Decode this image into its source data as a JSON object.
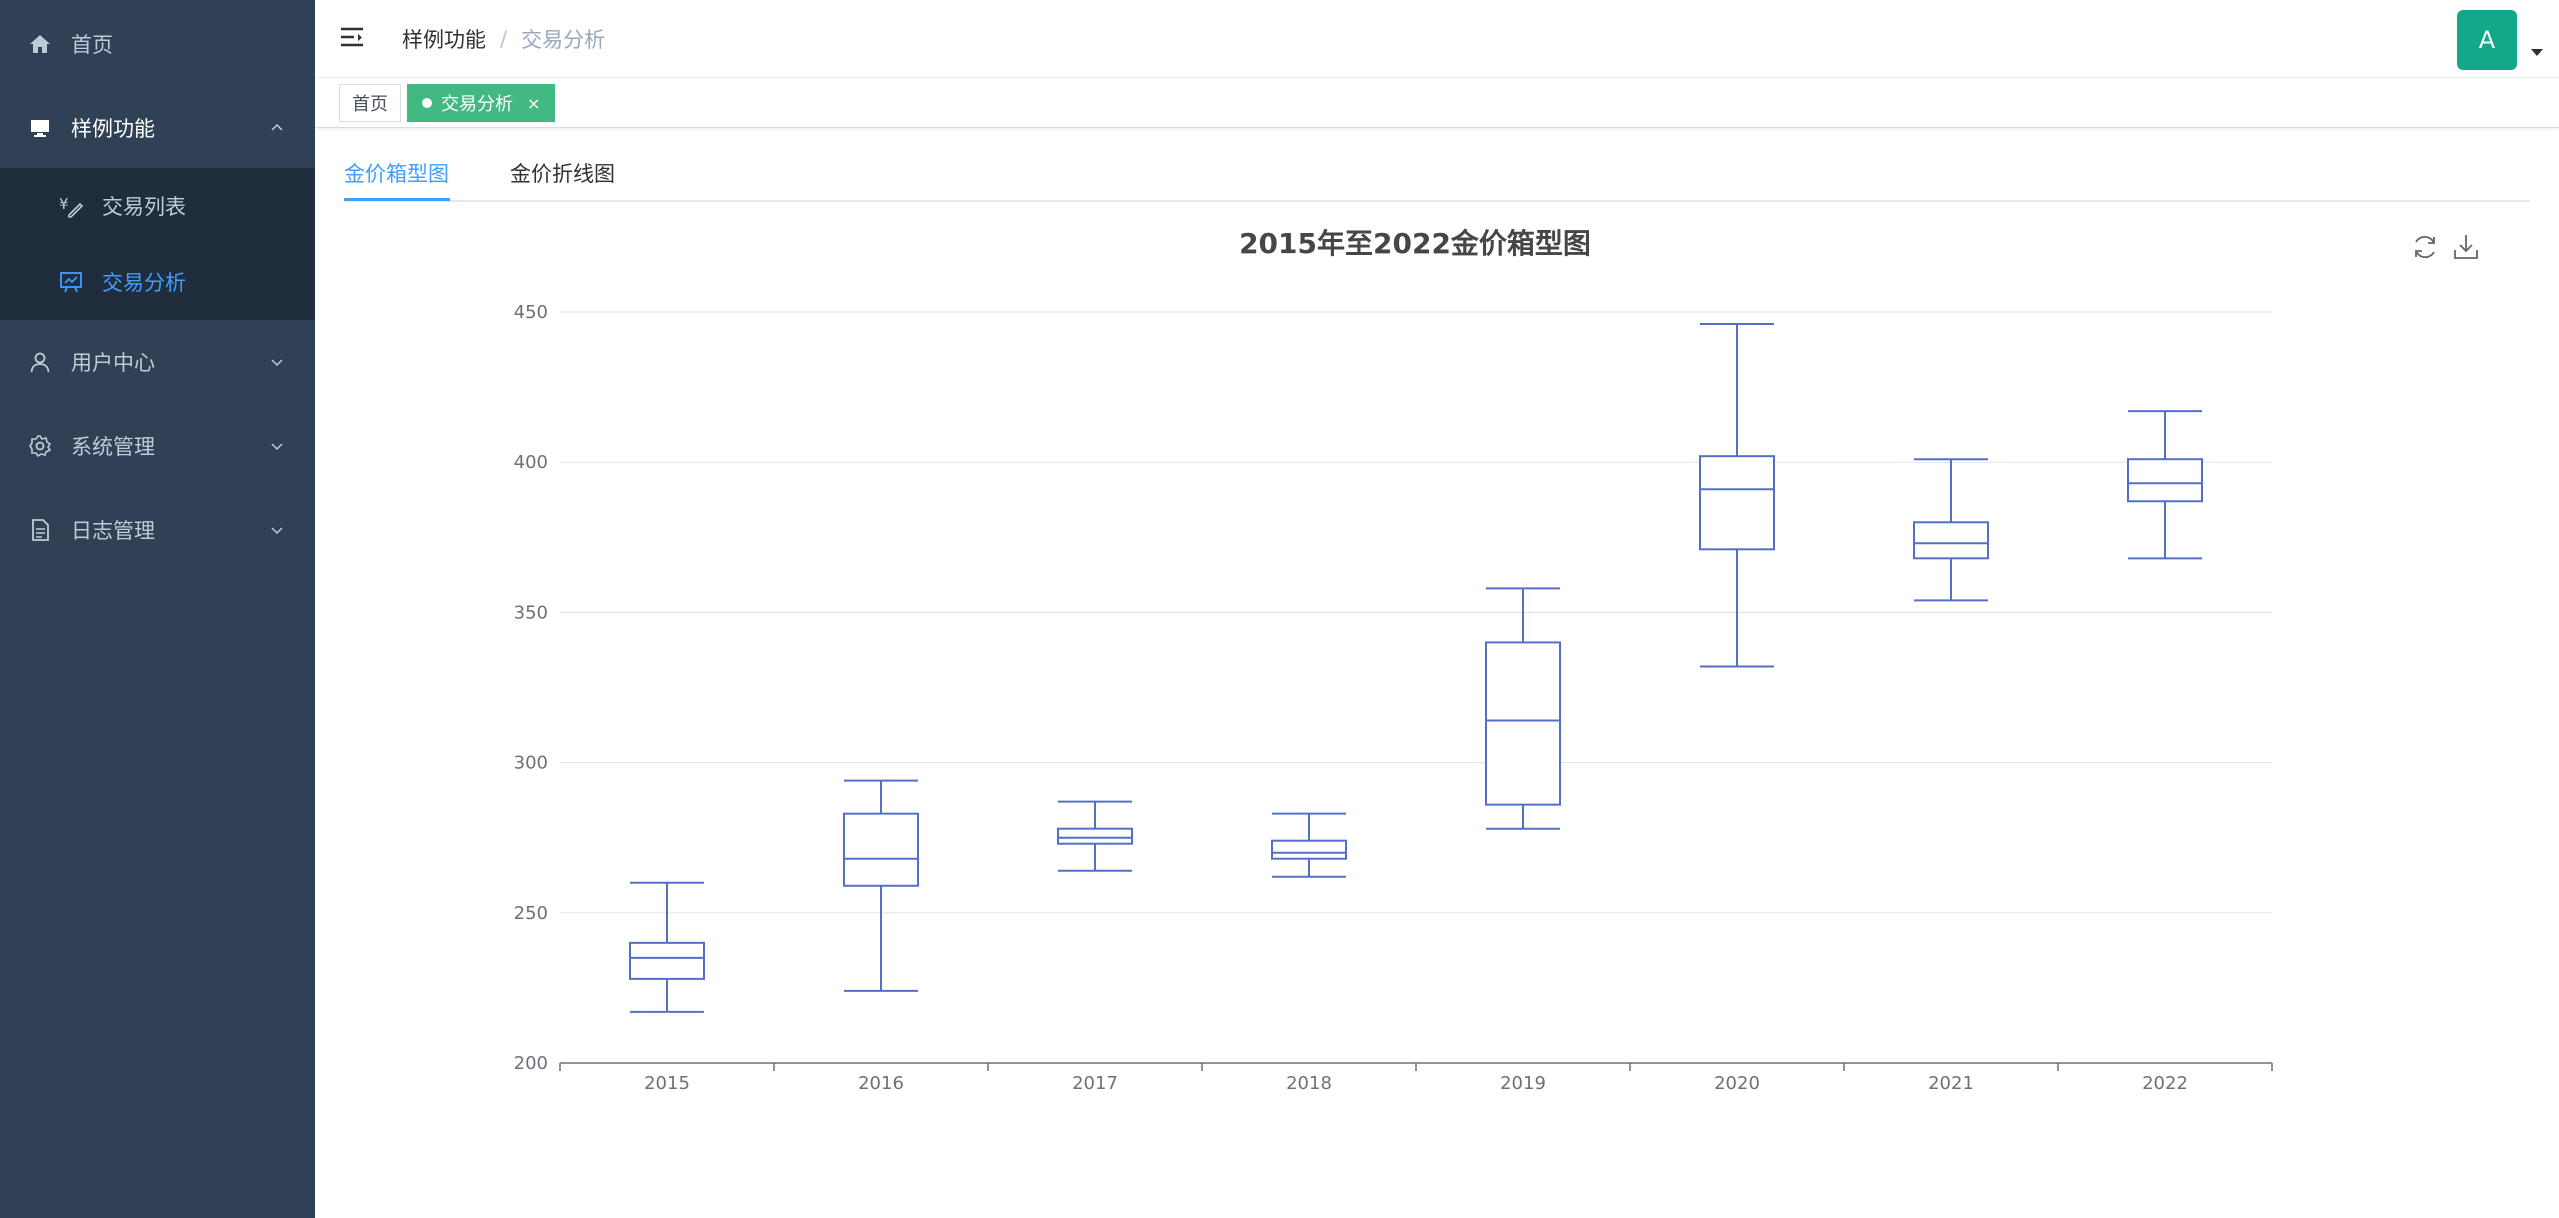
{
  "sidebar": {
    "items": [
      {
        "label": "首页",
        "icon": "home-icon"
      },
      {
        "label": "样例功能",
        "icon": "monitor-icon"
      },
      {
        "label": "用户中心",
        "icon": "user-icon"
      },
      {
        "label": "系统管理",
        "icon": "gear-icon"
      },
      {
        "label": "日志管理",
        "icon": "document-icon"
      }
    ],
    "submenu": [
      {
        "label": "交易列表",
        "icon": "yen-edit-icon"
      },
      {
        "label": "交易分析",
        "icon": "presentation-icon",
        "active": true
      }
    ]
  },
  "header": {
    "breadcrumb": [
      "样例功能",
      "交易分析"
    ],
    "avatar_letter": "A"
  },
  "tags": [
    {
      "label": "首页"
    },
    {
      "label": "交易分析",
      "active": true
    }
  ],
  "tabs": [
    {
      "label": "金价箱型图",
      "active": true
    },
    {
      "label": "金价折线图"
    }
  ],
  "colors": {
    "sidebar_bg": "#304156",
    "submenu_bg": "#1f2d3d",
    "accent": "#409eff",
    "tag_active": "#42b983",
    "avatar": "#13a88a",
    "box_stroke": "#5470c6"
  },
  "chart_data": {
    "type": "boxplot",
    "title": "2015年至2022金价箱型图",
    "categories": [
      "2015",
      "2016",
      "2017",
      "2018",
      "2019",
      "2020",
      "2021",
      "2022"
    ],
    "series": [
      {
        "values": [
          {
            "min": 217,
            "q1": 228,
            "median": 235,
            "q3": 240,
            "max": 260
          },
          {
            "min": 224,
            "q1": 259,
            "median": 268,
            "q3": 283,
            "max": 294
          },
          {
            "min": 264,
            "q1": 273,
            "median": 275,
            "q3": 278,
            "max": 287
          },
          {
            "min": 262,
            "q1": 268,
            "median": 270,
            "q3": 274,
            "max": 283
          },
          {
            "min": 278,
            "q1": 286,
            "median": 314,
            "q3": 340,
            "max": 358
          },
          {
            "min": 332,
            "q1": 371,
            "median": 391,
            "q3": 402,
            "max": 446
          },
          {
            "min": 354,
            "q1": 368,
            "median": 373,
            "q3": 380,
            "max": 401
          },
          {
            "min": 368,
            "q1": 387,
            "median": 393,
            "q3": 401,
            "max": 417
          }
        ]
      }
    ],
    "ylim": [
      200,
      450
    ],
    "yticks": [
      "200",
      "250",
      "300",
      "350",
      "400",
      "450"
    ],
    "grid": true
  }
}
